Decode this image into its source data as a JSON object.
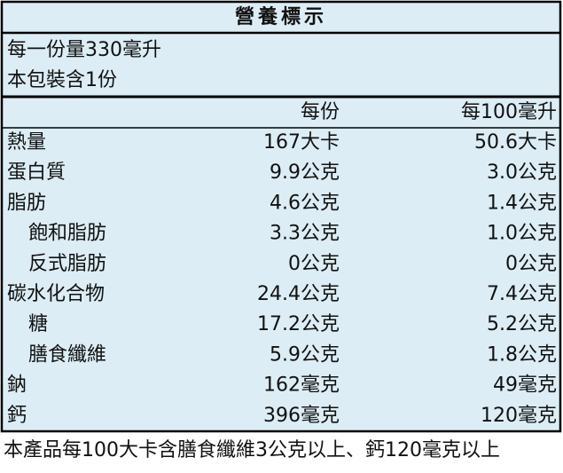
{
  "title": "營養標示",
  "serving": {
    "size": "每一份量330毫升",
    "count": "本包裝含1份"
  },
  "table": {
    "header": [
      "每份",
      "每100毫升"
    ],
    "rows": [
      [
        "熱量",
        "167大卡",
        "50.6大卡"
      ],
      [
        "蛋白質",
        "9.9公克",
        "3.0公克"
      ],
      [
        "脂肪",
        "4.6公克",
        "1.4公克"
      ],
      [
        "飽和脂肪",
        "3.3公克",
        "1.0公克"
      ],
      [
        "反式脂肪",
        "0公克",
        "0公克"
      ],
      [
        "碳水化合物",
        "24.4公克",
        "7.4公克"
      ],
      [
        "糖",
        "17.2公克",
        "5.2公克"
      ],
      [
        "膳食纖維",
        "5.9公克",
        "1.8公克"
      ],
      [
        "鈉",
        "162毫克",
        "49毫克"
      ],
      [
        "鈣",
        "396毫克",
        "120毫克"
      ]
    ]
  },
  "footnote": "本產品每100大卡含膳食纖維3公克以上、鈣120毫克以上"
}
